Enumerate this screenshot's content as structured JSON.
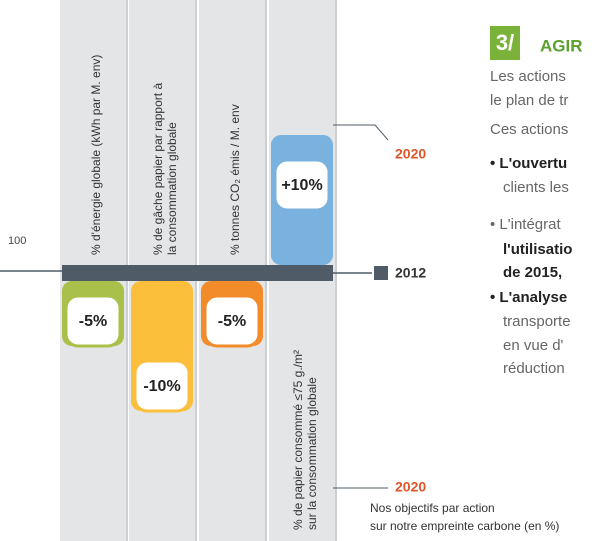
{
  "chart_data": {
    "type": "bar",
    "categories": [
      [
        "% d'énergie globale (kWh par M. env)"
      ],
      [
        "% de gâche papier par rapport à",
        "la consommation globale"
      ],
      [
        "% tonnes CO₂ émis / M. env"
      ],
      [
        "% de papier consommé ≤75 g./m²",
        "sur la consommation globale"
      ]
    ],
    "values": [
      -5,
      -10,
      -5,
      10
    ],
    "value_labels": [
      "-5%",
      "-10%",
      "-5%",
      "+10%"
    ],
    "colors": [
      "#a9c04a",
      "#fcbf3c",
      "#f28b2a",
      "#7ab2df"
    ],
    "baseline_label": "100",
    "years": {
      "top": "2020",
      "base": "2012",
      "bottom": "2020"
    }
  },
  "section": {
    "number": "3/",
    "title": "AGIR",
    "lines": [
      "Les actions",
      "le plan de tr",
      "Ces actions",
      "• L'ouvertu",
      "clients les",
      "• L'intégrat",
      "l'utilisatio",
      "de 2015,",
      "• L'analyse",
      "transporte",
      "en vue d'",
      "réduction"
    ]
  },
  "caption": [
    "Nos objectifs par action",
    "sur notre empreinte carbone (en %)"
  ]
}
